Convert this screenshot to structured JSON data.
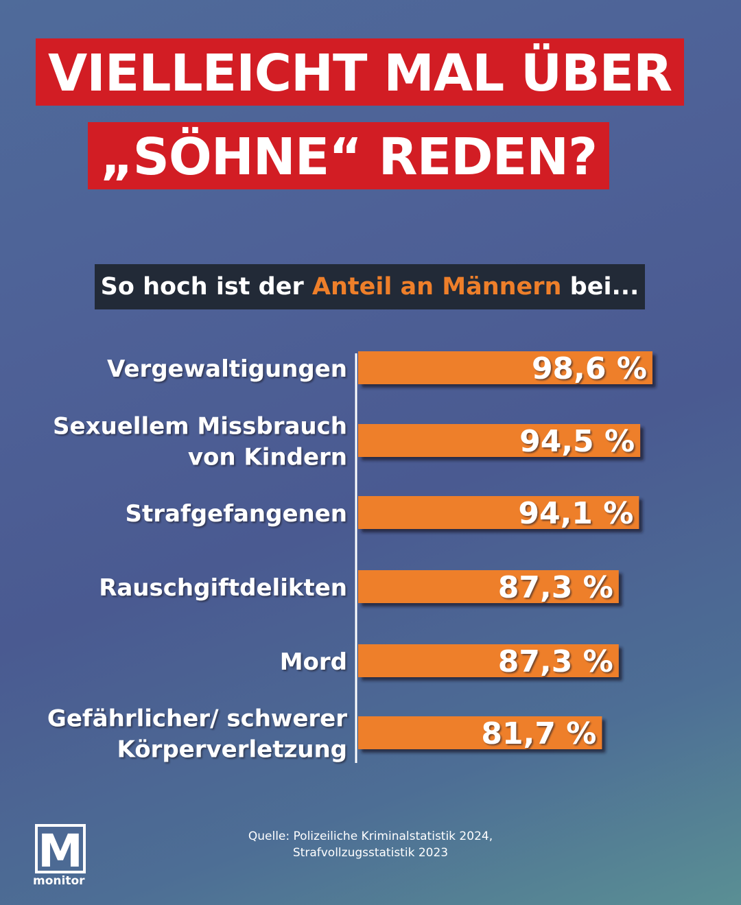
{
  "header": {
    "title_line1": "VIELLEICHT MAL ÜBER",
    "title_line2": "„SÖHNE“ REDEN?",
    "subtitle_pre": "So hoch ist der ",
    "subtitle_accent": "Anteil an Männern",
    "subtitle_post": " bei..."
  },
  "colors": {
    "title_bg": "#d21d24",
    "subtitle_bg": "#222a37",
    "accent": "#ee7f2a",
    "bar": "#ee7f2a",
    "text": "#ffffff"
  },
  "chart_data": {
    "type": "bar",
    "orientation": "horizontal",
    "categories": [
      [
        "Vergewaltigungen"
      ],
      [
        "Sexuellem Missbrauch",
        "von Kindern"
      ],
      [
        "Strafgefangenen"
      ],
      [
        "Rauschgiftdelikten"
      ],
      [
        "Mord"
      ],
      [
        "Gefährlicher/ schwerer",
        "Körperverletzung"
      ]
    ],
    "values": [
      98.6,
      94.5,
      94.1,
      87.3,
      87.3,
      81.7
    ],
    "value_labels": [
      "98,6 %",
      "94,5 %",
      "94,1 %",
      "87,3 %",
      "87,3 %",
      "81,7 %"
    ],
    "unit": "%"
  },
  "footer": {
    "source_line1": "Quelle: Polizeiliche Kriminalstatistik 2024,",
    "source_line2": "Strafvollzugsstatistik 2023",
    "logo_letter": "M",
    "logo_word": "monitor"
  }
}
